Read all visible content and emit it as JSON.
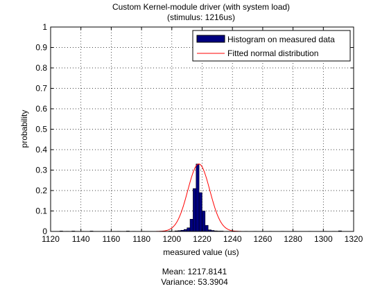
{
  "chart_data": {
    "type": "bar",
    "title": [
      "Custom Kernel-module driver (with system load)",
      "(stimulus: 1216us)"
    ],
    "xlabel": "measured value (us)",
    "ylabel": "probability",
    "xlim": [
      1120,
      1320
    ],
    "ylim": [
      0,
      1
    ],
    "x_ticks": [
      1120,
      1140,
      1160,
      1180,
      1200,
      1220,
      1240,
      1260,
      1280,
      1300,
      1320
    ],
    "x_tick_labels": [
      "1120",
      "1140",
      "1160",
      "1180",
      "1200",
      "1220",
      "1240",
      "1260",
      "1280",
      "1300",
      "1320"
    ],
    "y_ticks": [
      0,
      0.1,
      0.2,
      0.3,
      0.4,
      0.5,
      0.6,
      0.7,
      0.8,
      0.9,
      1
    ],
    "y_tick_labels": [
      "0",
      "0.1",
      "0.2",
      "0.3",
      "0.4",
      "0.5",
      "0.6",
      "0.7",
      "0.8",
      "0.9",
      "1"
    ],
    "grid": true,
    "legend_position": "top-right",
    "series": [
      {
        "name": "Histogram on measured data",
        "kind": "histogram",
        "color": "#00007f",
        "edge_color": "#000000",
        "bin_width": 2,
        "bin_centers": [
          1127,
          1131,
          1135,
          1141,
          1147,
          1155,
          1165,
          1171,
          1175,
          1181,
          1193,
          1199,
          1203,
          1205,
          1207,
          1209,
          1211,
          1213,
          1215,
          1217,
          1219,
          1221,
          1223,
          1225,
          1227,
          1229,
          1231,
          1233,
          1237,
          1243,
          1249,
          1255,
          1265,
          1273,
          1281,
          1291,
          1301,
          1307,
          1311
        ],
        "values": [
          0.002,
          0.001,
          0.002,
          0.001,
          0.002,
          0.001,
          0.001,
          0.002,
          0.001,
          0.001,
          0.001,
          0.002,
          0.003,
          0.004,
          0.006,
          0.01,
          0.018,
          0.06,
          0.21,
          0.33,
          0.19,
          0.1,
          0.03,
          0.008,
          0.005,
          0.003,
          0.002,
          0.002,
          0.001,
          0.001,
          0.001,
          0.001,
          0.001,
          0.001,
          0.001,
          0.001,
          0.001,
          0.001,
          0.003
        ]
      },
      {
        "name": "Fitted normal distribution",
        "kind": "line",
        "color": "#ff0000",
        "mean": 1217.8141,
        "variance": 53.3904,
        "peak": 0.33
      }
    ],
    "annotations": {
      "mean_text": "Mean: 1217.8141",
      "variance_text": "Variance: 53.3904"
    }
  }
}
